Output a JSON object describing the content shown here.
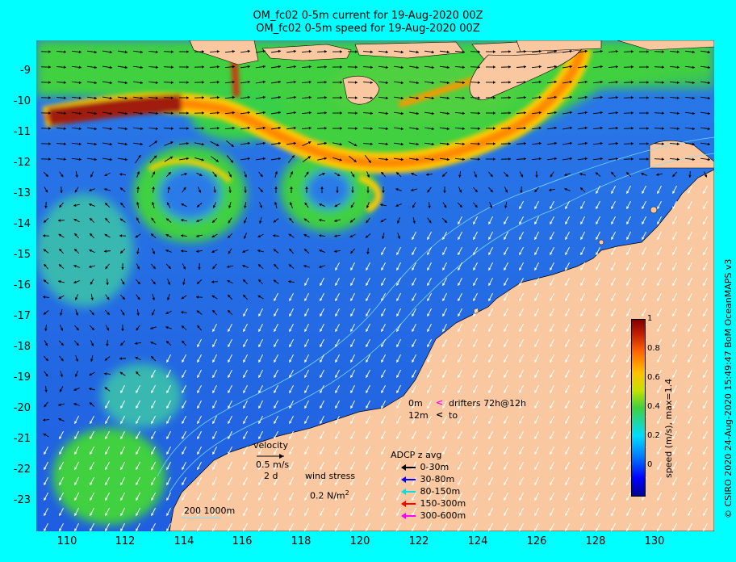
{
  "title": {
    "line1": "OM_fc02 0-5m current for 19-Aug-2020 00Z",
    "line2": "OM_fc02 0-5m speed for 19-Aug-2020 00Z"
  },
  "axes": {
    "lat_labels": [
      "-9",
      "-10",
      "-11",
      "-12",
      "-13",
      "-14",
      "-15",
      "-16",
      "-17",
      "-18",
      "-19",
      "-20",
      "-21",
      "-22",
      "-23"
    ],
    "lon_labels": [
      "110",
      "112",
      "114",
      "116",
      "118",
      "120",
      "122",
      "124",
      "126",
      "128",
      "130"
    ]
  },
  "colorbar": {
    "label": "speed (m/s), max=1.4",
    "ticks": [
      "1",
      "0.8",
      "0.6",
      "0.4",
      "0.2",
      "0"
    ]
  },
  "legend": {
    "velocity_label": "velocity",
    "velocity_value": "0.5 m/s",
    "velocity_time": "2 d",
    "wind_label": "wind stress",
    "wind_value": "0.2 N/m",
    "wind_unit_sup": "2",
    "drifter_0m": "0m",
    "drifter_12m": "12m",
    "drifter_text1": "drifters 72h@12h",
    "drifter_text2": "to",
    "adcp_title": "ADCP z avg",
    "adcp_items": [
      {
        "label": "0-30m",
        "color": "#000000"
      },
      {
        "label": "30-80m",
        "color": "#0000ff"
      },
      {
        "label": "80-150m",
        "color": "#00e0e0"
      },
      {
        "label": "150-300m",
        "color": "#ff0000"
      },
      {
        "label": "300-600m",
        "color": "#ff00ff"
      }
    ],
    "isobaths": "200  1000m"
  },
  "credit": "© CSIRO 2020   24-Aug-2020 15:49:47 BoM OceanMAPS v3",
  "colors": {
    "frame": "#00ffff",
    "land": "#fac8a0",
    "ocean_low": "#1e64e6",
    "ocean_mid": "#32c864",
    "jet": "#ff9600",
    "jet_core": "#a01e0a"
  }
}
